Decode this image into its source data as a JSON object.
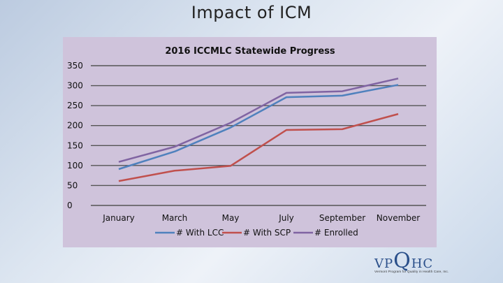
{
  "slide": {
    "title": "Impact of ICM"
  },
  "chart_data": {
    "type": "line",
    "title": "2016 ICCMLC Statewide Progress",
    "categories": [
      "January",
      "March",
      "May",
      "July",
      "September",
      "November"
    ],
    "ylim": [
      0,
      350
    ],
    "yticks": [
      0,
      50,
      100,
      150,
      200,
      250,
      300,
      350
    ],
    "grid": true,
    "legend_position": "bottom",
    "series": [
      {
        "name": "# With LCC",
        "color": "#4f81bd",
        "values": [
          91,
          135,
          195,
          271,
          275,
          302
        ]
      },
      {
        "name": "# With SCP",
        "color": "#c0504d",
        "values": [
          61,
          87,
          99,
          189,
          191,
          229
        ]
      },
      {
        "name": "# Enrolled",
        "color": "#8064a2",
        "values": [
          109,
          147,
          207,
          282,
          286,
          318
        ]
      }
    ]
  },
  "logo": {
    "text": "VPQHC",
    "tagline": "Vermont Program for Quality in Health Care, Inc."
  }
}
